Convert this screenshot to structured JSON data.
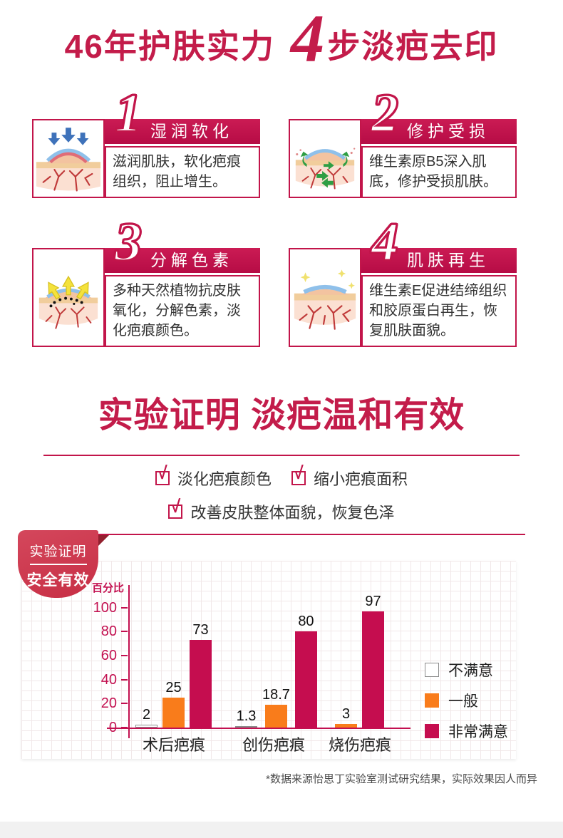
{
  "header": {
    "title_prefix": "46年护肤实力",
    "title_number": "4",
    "title_suffix": "步淡疤去印"
  },
  "steps": [
    {
      "num": "1",
      "title": "湿润软化",
      "body": "滋润肌肤，软化疤痕组织，阻止增生。"
    },
    {
      "num": "2",
      "title": "修护受损",
      "body": "维生素原B5深入肌底，修护受损肌肤。"
    },
    {
      "num": "3",
      "title": "分解色素",
      "body": "多种天然植物抗皮肤氧化，分解色素，淡化疤痕颜色。"
    },
    {
      "num": "4",
      "title": "肌肤再生",
      "body": "维生素E促进结缔组织和胶原蛋白再生，恢复肌肤面貌。"
    }
  ],
  "proof": {
    "heading": "实验证明 淡疤温和有效",
    "checklist": [
      "淡化疤痕颜色",
      "缩小疤痕面积",
      "改善皮肤整体面貌，恢复色泽"
    ]
  },
  "ribbon": {
    "line1": "实验证明",
    "line2": "安全有效"
  },
  "chart_data": {
    "type": "bar",
    "title": "实验证明 安全有效",
    "ylabel": "百分比",
    "categories": [
      "术后疤痕",
      "创伤疤痕",
      "烧伤疤痕"
    ],
    "series": [
      {
        "name": "不满意",
        "color": "#ffffff",
        "border": "#8c8c8c",
        "values": [
          2,
          1.3,
          null
        ]
      },
      {
        "name": "一般",
        "color": "#f97c1b",
        "values": [
          25,
          18.7,
          3
        ]
      },
      {
        "name": "非常满意",
        "color": "#c50d4f",
        "values": [
          73,
          80,
          97
        ]
      }
    ],
    "yticks": [
      0,
      20,
      40,
      60,
      80,
      100
    ],
    "ylim": [
      0,
      110
    ],
    "grid": true,
    "legend_position": "right"
  },
  "footnote": "*数据来源怡思丁实验室测试研究结果，实际效果因人而异",
  "icons": {
    "check": "√"
  },
  "colors": {
    "primary_red": "#c31c4a",
    "bar_red": "#c50d4f",
    "orange": "#f97c1b",
    "ribbon_red": "#cf3b4f",
    "ribbon_fold": "#93202f"
  }
}
